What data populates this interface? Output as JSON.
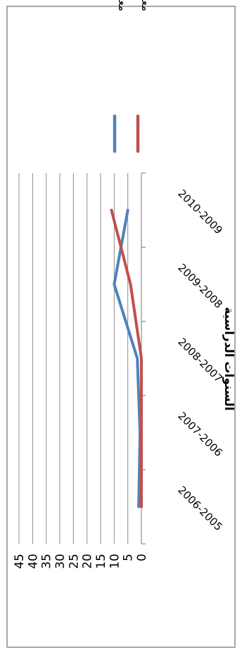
{
  "chart_data": {
    "type": "line",
    "orientation": "rotated-90-clockwise",
    "categories": [
      "2006-2005",
      "2007-2006",
      "2008-2007",
      "2009-2008",
      "2010-2009"
    ],
    "series": [
      {
        "name": "معدل الطرد الذكور",
        "values": [
          1,
          0.5,
          1.5,
          10,
          5
        ],
        "color": "#4F81BD"
      },
      {
        "name": "معدل الطرد الإناث",
        "values": [
          0,
          0,
          0,
          4,
          11
        ],
        "color": "#C0504D"
      }
    ],
    "yticks": [
      0,
      5,
      10,
      15,
      20,
      25,
      30,
      35,
      40,
      45
    ],
    "ylim": [
      0,
      45
    ],
    "xlabel": "السنوات الدراسية",
    "ylabel": "",
    "grid": true,
    "legend": "right"
  }
}
